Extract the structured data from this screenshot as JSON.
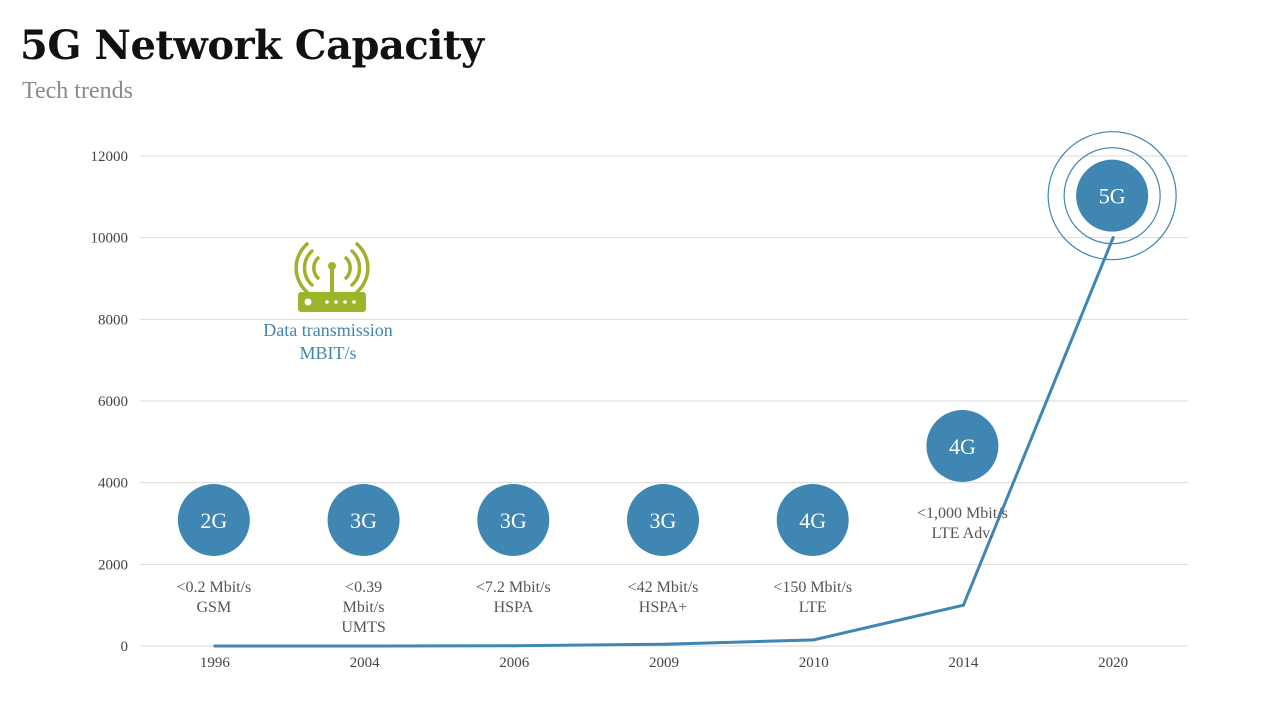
{
  "title": "5G Network Capacity",
  "subtitle": "Tech trends",
  "colors": {
    "line": "#3f86b2",
    "bubble": "#3f86b2",
    "grid": "#d9d9d9",
    "router": "#9bb52b"
  },
  "icons": {
    "router": "wifi-router-icon"
  },
  "legend": {
    "line1": "Data transmission",
    "line2": "MBIT/s"
  },
  "chart_data": {
    "type": "line",
    "title": "5G Network Capacity",
    "subtitle": "Tech trends",
    "categories": [
      "1996",
      "2004",
      "2006",
      "2009",
      "2010",
      "2014",
      "2020"
    ],
    "series": [
      {
        "name": "Data transmission MBIT/s",
        "values": [
          0.2,
          0.39,
          7.2,
          42,
          150,
          1000,
          10000
        ]
      }
    ],
    "ylim": [
      0,
      12000
    ],
    "yticks": [
      "0",
      "2000",
      "4000",
      "6000",
      "8000",
      "10000",
      "12000"
    ],
    "grid": true,
    "generations": [
      {
        "label": "2G",
        "line1": "<0.2 Mbit/s",
        "line2": "GSM"
      },
      {
        "label": "3G",
        "line1": "<0.39",
        "line2": "Mbit/s",
        "line3": "UMTS"
      },
      {
        "label": "3G",
        "line1": "<7.2 Mbit/s",
        "line2": "HSPA"
      },
      {
        "label": "3G",
        "line1": "<42 Mbit/s",
        "line2": "HSPA+"
      },
      {
        "label": "4G",
        "line1": "<150 Mbit/s",
        "line2": "LTE"
      },
      {
        "label": "4G",
        "line1": "<1,000 Mbit/s",
        "line2": "LTE Adv."
      },
      {
        "label": "5G"
      }
    ]
  }
}
